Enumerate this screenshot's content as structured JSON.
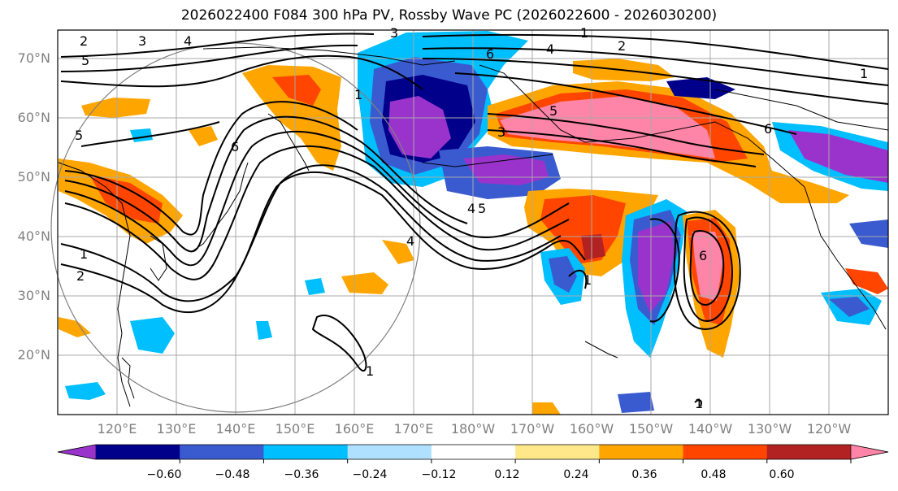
{
  "title": "2026022400 F084 300 hPa PV, Rossby Wave PC (2026022600 - 2026030200)",
  "lat_labels": [
    "70°N",
    "60°N",
    "50°N",
    "40°N",
    "30°N",
    "20°N"
  ],
  "lon_labels": [
    "120°E",
    "130°E",
    "140°E",
    "150°E",
    "160°E",
    "170°E",
    "180°W",
    "170°W",
    "160°W",
    "150°W",
    "140°W",
    "130°W",
    "120°W"
  ],
  "colorbar": {
    "ticks": [
      "−0.60",
      "−0.48",
      "−0.36",
      "−0.24",
      "−0.12",
      "0.12",
      "0.24",
      "0.36",
      "0.48",
      "0.60"
    ],
    "colors": [
      "#9933cc",
      "#00008b",
      "#3a5bd0",
      "#00bfff",
      "#b0e0ff",
      "#ffffff",
      "#ffe88a",
      "#ffa500",
      "#ff4500",
      "#b22222",
      "#ff85a8"
    ]
  },
  "contour_labels": [
    "1",
    "2",
    "3",
    "4",
    "5",
    "6",
    "1",
    "2",
    "4",
    "6",
    "5",
    "3",
    "1",
    "6",
    "5",
    "4",
    "1",
    "1",
    "1",
    "1",
    "2",
    "3",
    "4",
    "5",
    "6"
  ],
  "colors": {
    "contour": "#000000",
    "grid": "#a9a9a9",
    "coast": "#000000"
  }
}
